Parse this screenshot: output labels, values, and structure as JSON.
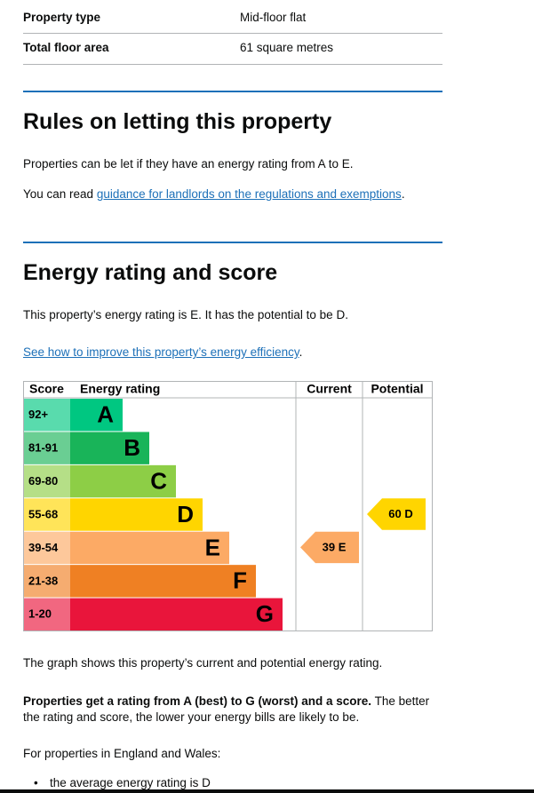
{
  "summary": {
    "rows": [
      [
        "Property type",
        "Mid-floor flat"
      ],
      [
        "Total floor area",
        "61 square metres"
      ]
    ]
  },
  "letting": {
    "title": "Rules on letting this property",
    "paragraph": "Properties can be let if they have an energy rating from A to E.",
    "guidance": {
      "before": "You can read ",
      "link": "guidance for landlords on the regulations and exemptions",
      "after": "."
    }
  },
  "rating": {
    "title": "Energy rating and score",
    "paragraph": "This property’s energy rating is E. It has the potential to be D.",
    "improve": {
      "link": "See how to improve this property’s energy efficiency",
      "after": "."
    },
    "chart": {
      "headers": {
        "score": "Score",
        "rating": "Energy rating",
        "current": "Current",
        "potential": "Potential"
      },
      "bands": [
        {
          "score": "92+",
          "letter": "A",
          "color": "#00c781"
        },
        {
          "score": "81-91",
          "letter": "B",
          "color": "#19b459"
        },
        {
          "score": "69-80",
          "letter": "C",
          "color": "#8dce46"
        },
        {
          "score": "55-68",
          "letter": "D",
          "color": "#ffd500"
        },
        {
          "score": "39-54",
          "letter": "E",
          "color": "#fcaa65"
        },
        {
          "score": "21-38",
          "letter": "F",
          "color": "#ef8023"
        },
        {
          "score": "1-20",
          "letter": "G",
          "color": "#e9153b"
        }
      ],
      "current": {
        "score": 39,
        "rating": "E"
      },
      "potential": {
        "score": 60,
        "rating": "D"
      }
    },
    "graph_note": "The graph shows this property’s current and potential energy rating.",
    "scale_note": {
      "bold": "Properties get a rating from A (best) to G (worst) and a score.",
      "rest": " The better the rating and score, the lower your energy bills are likely to be."
    },
    "region_note": "For properties in England and Wales:",
    "bullets": [
      "the average energy rating is D"
    ]
  }
}
